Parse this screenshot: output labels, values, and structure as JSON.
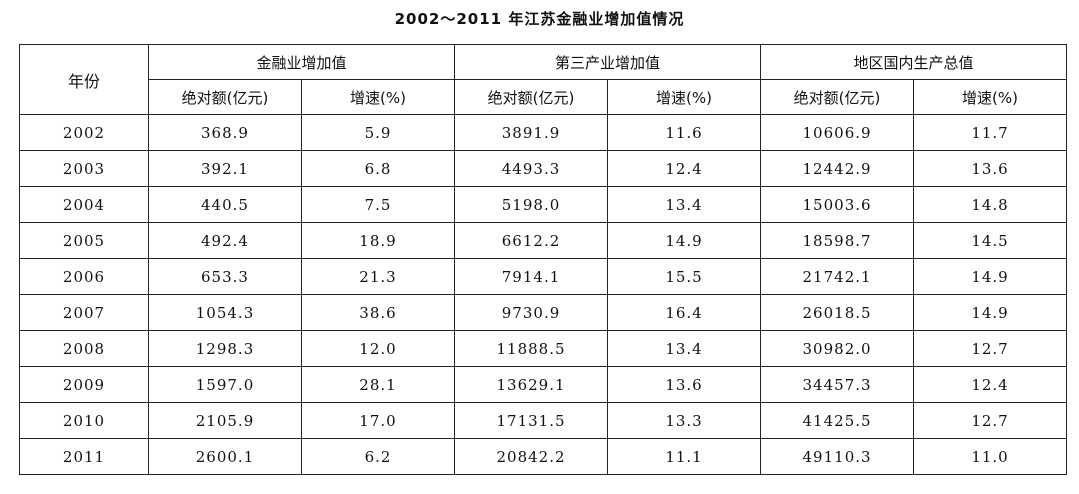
{
  "chart_data": {
    "type": "table",
    "title": "2002～2011 年江苏金融业增加值情况",
    "row_header": "年份",
    "groups": [
      "金融业增加值",
      "第三产业增加值",
      "地区国内生产总值"
    ],
    "sub_headers": [
      "绝对额(亿元)",
      "增速(%)"
    ],
    "rows": [
      [
        "2002",
        "368.9",
        "5.9",
        "3891.9",
        "11.6",
        "10606.9",
        "11.7"
      ],
      [
        "2003",
        "392.1",
        "6.8",
        "4493.3",
        "12.4",
        "12442.9",
        "13.6"
      ],
      [
        "2004",
        "440.5",
        "7.5",
        "5198.0",
        "13.4",
        "15003.6",
        "14.8"
      ],
      [
        "2005",
        "492.4",
        "18.9",
        "6612.2",
        "14.9",
        "18598.7",
        "14.5"
      ],
      [
        "2006",
        "653.3",
        "21.3",
        "7914.1",
        "15.5",
        "21742.1",
        "14.9"
      ],
      [
        "2007",
        "1054.3",
        "38.6",
        "9730.9",
        "16.4",
        "26018.5",
        "14.9"
      ],
      [
        "2008",
        "1298.3",
        "12.0",
        "11888.5",
        "13.4",
        "30982.0",
        "12.7"
      ],
      [
        "2009",
        "1597.0",
        "28.1",
        "13629.1",
        "13.6",
        "34457.3",
        "12.4"
      ],
      [
        "2010",
        "2105.9",
        "17.0",
        "17131.5",
        "13.3",
        "41425.5",
        "12.7"
      ],
      [
        "2011",
        "2600.1",
        "6.2",
        "20842.2",
        "11.1",
        "49110.3",
        "11.0"
      ]
    ]
  }
}
